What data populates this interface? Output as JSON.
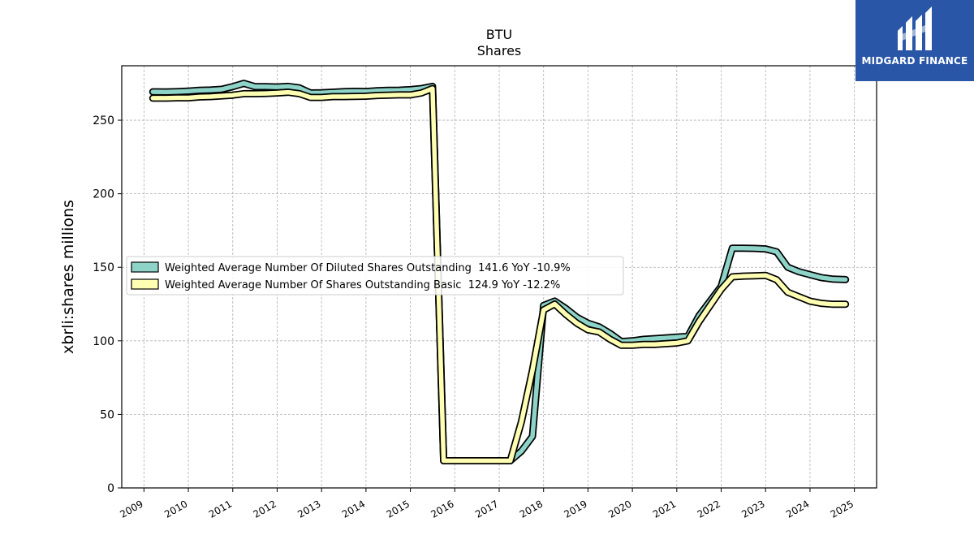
{
  "logo": {
    "text": "MIDGARD FINANCE"
  },
  "chart_data": {
    "type": "line",
    "title": "BTU",
    "subtitle": "Shares",
    "xlabel": "",
    "ylabel": "xbrli:shares millions",
    "xlim": [
      2008.5,
      2025.5
    ],
    "ylim": [
      0,
      287
    ],
    "yticks": [
      0,
      50,
      100,
      150,
      200,
      250
    ],
    "xticks": [
      "2009",
      "2010",
      "2011",
      "2012",
      "2013",
      "2014",
      "2015",
      "2016",
      "2017",
      "2018",
      "2019",
      "2020",
      "2021",
      "2022",
      "2023",
      "2024",
      "2025"
    ],
    "grid": true,
    "legend_position": "center-left",
    "series": [
      {
        "name": "Weighted Average Number Of Diluted Shares Outstanding  141.6 YoY -10.9%",
        "color": "#8dd3c7",
        "x": [
          2009.2,
          2009.5,
          2009.75,
          2010.0,
          2010.25,
          2010.5,
          2010.75,
          2011.0,
          2011.25,
          2011.5,
          2011.75,
          2012.0,
          2012.25,
          2012.5,
          2012.75,
          2013.0,
          2013.25,
          2013.5,
          2013.75,
          2014.0,
          2014.25,
          2014.5,
          2014.75,
          2015.0,
          2015.25,
          2015.5,
          2015.75,
          2016.0,
          2016.25,
          2016.5,
          2016.75,
          2017.0,
          2017.25,
          2017.5,
          2017.75,
          2018.0,
          2018.25,
          2018.5,
          2018.75,
          2019.0,
          2019.25,
          2019.5,
          2019.75,
          2020.0,
          2020.25,
          2020.5,
          2020.75,
          2021.0,
          2021.25,
          2021.5,
          2021.75,
          2022.0,
          2022.25,
          2022.5,
          2022.75,
          2023.0,
          2023.25,
          2023.5,
          2023.75,
          2024.0,
          2024.25,
          2024.5,
          2024.8
        ],
        "values": [
          269.3,
          269.2,
          269.4,
          269.8,
          270.3,
          270.5,
          271.0,
          272.8,
          275.0,
          272.8,
          272.8,
          272.6,
          273.0,
          272.0,
          268.5,
          268.6,
          269.0,
          269.4,
          269.6,
          269.5,
          270.0,
          270.3,
          270.4,
          270.8,
          271.5,
          273.0,
          18.5,
          18.5,
          18.5,
          18.5,
          18.5,
          18.5,
          18.5,
          25.0,
          35.0,
          124.0,
          127.0,
          122.0,
          116.0,
          112.0,
          109.5,
          105.0,
          99.5,
          100.0,
          101.0,
          101.5,
          102.0,
          102.5,
          103.0,
          117.0,
          127.0,
          137.0,
          163.0,
          163.0,
          162.8,
          162.5,
          160.5,
          150.0,
          147.0,
          145.0,
          143.0,
          142.0,
          141.6
        ]
      },
      {
        "name": "Weighted Average Number Of Shares Outstanding Basic  124.9 YoY -12.2%",
        "color": "#ffffb3",
        "x": [
          2009.2,
          2009.5,
          2009.75,
          2010.0,
          2010.25,
          2010.5,
          2010.75,
          2011.0,
          2011.25,
          2011.5,
          2011.75,
          2012.0,
          2012.25,
          2012.5,
          2012.75,
          2013.0,
          2013.25,
          2013.5,
          2013.75,
          2014.0,
          2014.25,
          2014.5,
          2014.75,
          2015.0,
          2015.25,
          2015.5,
          2015.75,
          2016.0,
          2016.25,
          2016.5,
          2016.75,
          2017.0,
          2017.25,
          2017.5,
          2017.75,
          2018.0,
          2018.25,
          2018.5,
          2018.75,
          2019.0,
          2019.25,
          2019.5,
          2019.75,
          2020.0,
          2020.25,
          2020.5,
          2020.75,
          2021.0,
          2021.25,
          2021.5,
          2021.75,
          2022.0,
          2022.25,
          2022.5,
          2022.75,
          2023.0,
          2023.25,
          2023.5,
          2023.75,
          2024.0,
          2024.25,
          2024.5,
          2024.8
        ],
        "values": [
          265.0,
          265.0,
          265.2,
          265.2,
          265.8,
          266.0,
          266.5,
          267.0,
          268.0,
          268.0,
          268.2,
          268.5,
          269.0,
          268.0,
          265.5,
          265.5,
          266.0,
          266.0,
          266.2,
          266.3,
          266.8,
          267.0,
          267.2,
          267.2,
          268.5,
          271.5,
          18.5,
          18.5,
          18.5,
          18.5,
          18.5,
          18.5,
          18.5,
          45.0,
          80.0,
          121.0,
          125.0,
          118.0,
          112.0,
          107.5,
          106.0,
          101.0,
          97.0,
          97.0,
          97.5,
          97.5,
          98.0,
          98.5,
          100.0,
          113.0,
          124.0,
          135.0,
          143.5,
          144.0,
          144.2,
          144.5,
          141.5,
          133.0,
          130.0,
          127.0,
          125.5,
          124.9,
          124.9
        ]
      }
    ]
  }
}
